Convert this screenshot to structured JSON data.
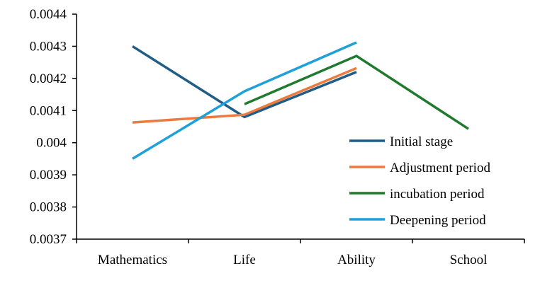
{
  "chart_data": {
    "type": "line",
    "categories": [
      "Mathematics",
      "Life",
      "Ability",
      "School"
    ],
    "ylim": [
      0.0037,
      0.0044
    ],
    "yticks": [
      "0.0037",
      "0.0038",
      "0.0039",
      "0.004",
      "0.0041",
      "0.0042",
      "0.0043",
      "0.0044"
    ],
    "grid": false,
    "legend_position": "bottom-right",
    "series": [
      {
        "name": "Initial stage",
        "color": "#1f5c86",
        "values": [
          0.0043,
          0.00408,
          0.00422,
          null
        ]
      },
      {
        "name": "Adjustment period",
        "color": "#ec7a3c",
        "values": [
          0.004063,
          0.004087,
          0.004232,
          null
        ]
      },
      {
        "name": "incubation period",
        "color": "#1f7a2e",
        "values": [
          null,
          0.00412,
          0.00427,
          0.004043
        ]
      },
      {
        "name": "Deepening period",
        "color": "#1fa0d8",
        "values": [
          0.00395,
          0.00416,
          0.004312,
          null
        ]
      }
    ]
  }
}
